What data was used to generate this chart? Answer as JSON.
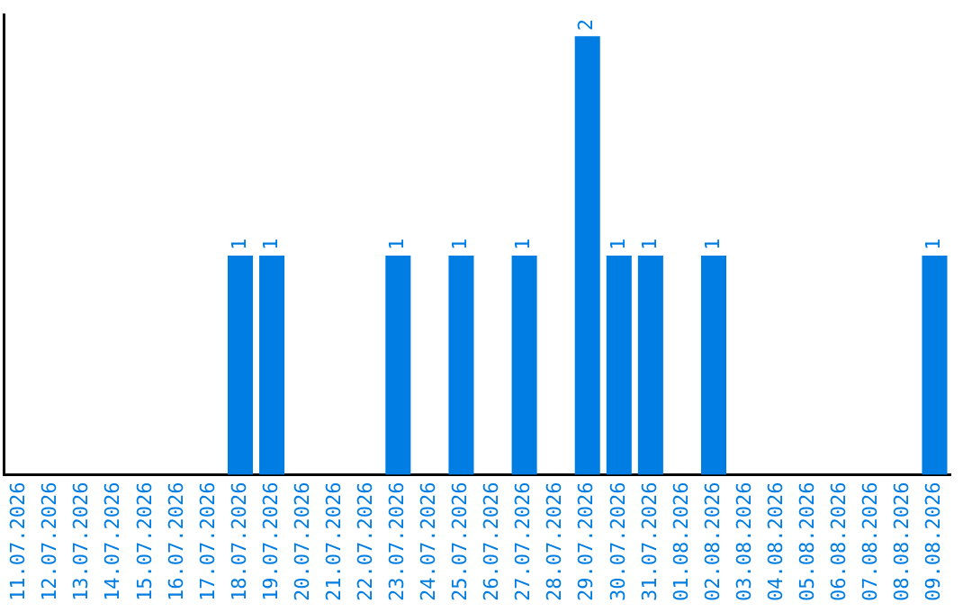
{
  "chart_data": {
    "type": "bar",
    "categories": [
      "11.07.2026",
      "12.07.2026",
      "13.07.2026",
      "14.07.2026",
      "15.07.2026",
      "16.07.2026",
      "17.07.2026",
      "18.07.2026",
      "19.07.2026",
      "20.07.2026",
      "21.07.2026",
      "22.07.2026",
      "23.07.2026",
      "24.07.2026",
      "25.07.2026",
      "26.07.2026",
      "27.07.2026",
      "28.07.2026",
      "29.07.2026",
      "30.07.2026",
      "31.07.2026",
      "01.08.2026",
      "02.08.2026",
      "03.08.2026",
      "04.08.2026",
      "05.08.2026",
      "06.08.2026",
      "07.08.2026",
      "08.08.2026",
      "09.08.2026"
    ],
    "values": [
      0,
      0,
      0,
      0,
      0,
      0,
      0,
      1,
      1,
      0,
      0,
      0,
      1,
      0,
      1,
      0,
      1,
      0,
      2,
      1,
      1,
      0,
      1,
      0,
      0,
      0,
      0,
      0,
      0,
      1
    ],
    "value_labels": [
      null,
      null,
      null,
      null,
      null,
      null,
      null,
      "1",
      "1",
      null,
      null,
      null,
      "1",
      null,
      "1",
      null,
      "1",
      null,
      "2",
      "1",
      "1",
      null,
      "1",
      null,
      null,
      null,
      null,
      null,
      null,
      "1"
    ],
    "color": "#007de3",
    "ylim": [
      0,
      2.1
    ],
    "tick_labels": "x",
    "grid": false,
    "legend": false
  }
}
